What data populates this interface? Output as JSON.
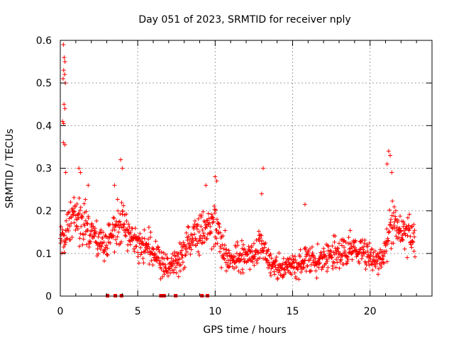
{
  "chart_data": {
    "type": "scatter",
    "title": "Day 051 of 2023, SRMTID for receiver nply",
    "xlabel": "GPS time / hours",
    "ylabel": "SRMTID / TECUs",
    "xlim": [
      0,
      24
    ],
    "ylim": [
      0,
      0.6
    ],
    "xticks": [
      "0",
      "5",
      "10",
      "15",
      "20"
    ],
    "xtick_values": [
      0,
      5,
      10,
      15,
      20
    ],
    "yticks": [
      "0",
      "0.1",
      "0.2",
      "0.3",
      "0.4",
      "0.5",
      "0.6"
    ],
    "ytick_values": [
      0,
      0.1,
      0.2,
      0.3,
      0.4,
      0.5,
      0.6
    ],
    "grid": true,
    "marker": "+",
    "series_color": "#ff0000",
    "trend": [
      [
        0.0,
        0.15
      ],
      [
        0.3,
        0.14
      ],
      [
        0.6,
        0.18
      ],
      [
        1.0,
        0.19
      ],
      [
        1.5,
        0.16
      ],
      [
        2.0,
        0.15
      ],
      [
        2.5,
        0.12
      ],
      [
        3.0,
        0.12
      ],
      [
        3.5,
        0.16
      ],
      [
        4.0,
        0.17
      ],
      [
        4.5,
        0.14
      ],
      [
        5.0,
        0.12
      ],
      [
        5.5,
        0.12
      ],
      [
        6.0,
        0.11
      ],
      [
        6.5,
        0.08
      ],
      [
        7.0,
        0.07
      ],
      [
        7.5,
        0.08
      ],
      [
        8.0,
        0.11
      ],
      [
        8.5,
        0.14
      ],
      [
        9.0,
        0.15
      ],
      [
        9.5,
        0.16
      ],
      [
        10.0,
        0.17
      ],
      [
        10.5,
        0.11
      ],
      [
        11.0,
        0.09
      ],
      [
        11.5,
        0.09
      ],
      [
        12.0,
        0.09
      ],
      [
        12.5,
        0.1
      ],
      [
        13.0,
        0.12
      ],
      [
        13.5,
        0.08
      ],
      [
        14.0,
        0.07
      ],
      [
        14.5,
        0.065
      ],
      [
        15.0,
        0.07
      ],
      [
        15.5,
        0.08
      ],
      [
        16.0,
        0.09
      ],
      [
        16.5,
        0.08
      ],
      [
        17.0,
        0.09
      ],
      [
        17.5,
        0.1
      ],
      [
        18.0,
        0.1
      ],
      [
        18.5,
        0.1
      ],
      [
        19.0,
        0.11
      ],
      [
        19.5,
        0.1
      ],
      [
        20.0,
        0.09
      ],
      [
        20.5,
        0.08
      ],
      [
        21.0,
        0.1
      ],
      [
        21.3,
        0.16
      ],
      [
        21.5,
        0.18
      ],
      [
        22.0,
        0.15
      ],
      [
        22.5,
        0.15
      ],
      [
        22.9,
        0.12
      ]
    ],
    "outliers": [
      [
        0.2,
        0.59
      ],
      [
        0.25,
        0.56
      ],
      [
        0.3,
        0.55
      ],
      [
        0.22,
        0.53
      ],
      [
        0.28,
        0.52
      ],
      [
        0.18,
        0.51
      ],
      [
        0.32,
        0.5
      ],
      [
        0.24,
        0.45
      ],
      [
        0.3,
        0.44
      ],
      [
        0.15,
        0.41
      ],
      [
        0.22,
        0.405
      ],
      [
        0.2,
        0.36
      ],
      [
        0.3,
        0.355
      ],
      [
        0.35,
        0.29
      ],
      [
        1.2,
        0.3
      ],
      [
        1.3,
        0.29
      ],
      [
        3.9,
        0.32
      ],
      [
        4.0,
        0.3
      ],
      [
        13.1,
        0.3
      ],
      [
        13.0,
        0.24
      ],
      [
        15.8,
        0.215
      ],
      [
        21.2,
        0.34
      ],
      [
        21.3,
        0.33
      ],
      [
        21.1,
        0.31
      ],
      [
        21.4,
        0.29
      ],
      [
        9.4,
        0.26
      ],
      [
        10.0,
        0.28
      ],
      [
        10.1,
        0.27
      ],
      [
        3.5,
        0.26
      ],
      [
        1.8,
        0.26
      ]
    ],
    "zero_points": [
      3.05,
      3.55,
      3.95,
      6.5,
      6.7,
      7.45,
      9.15,
      9.5
    ]
  }
}
